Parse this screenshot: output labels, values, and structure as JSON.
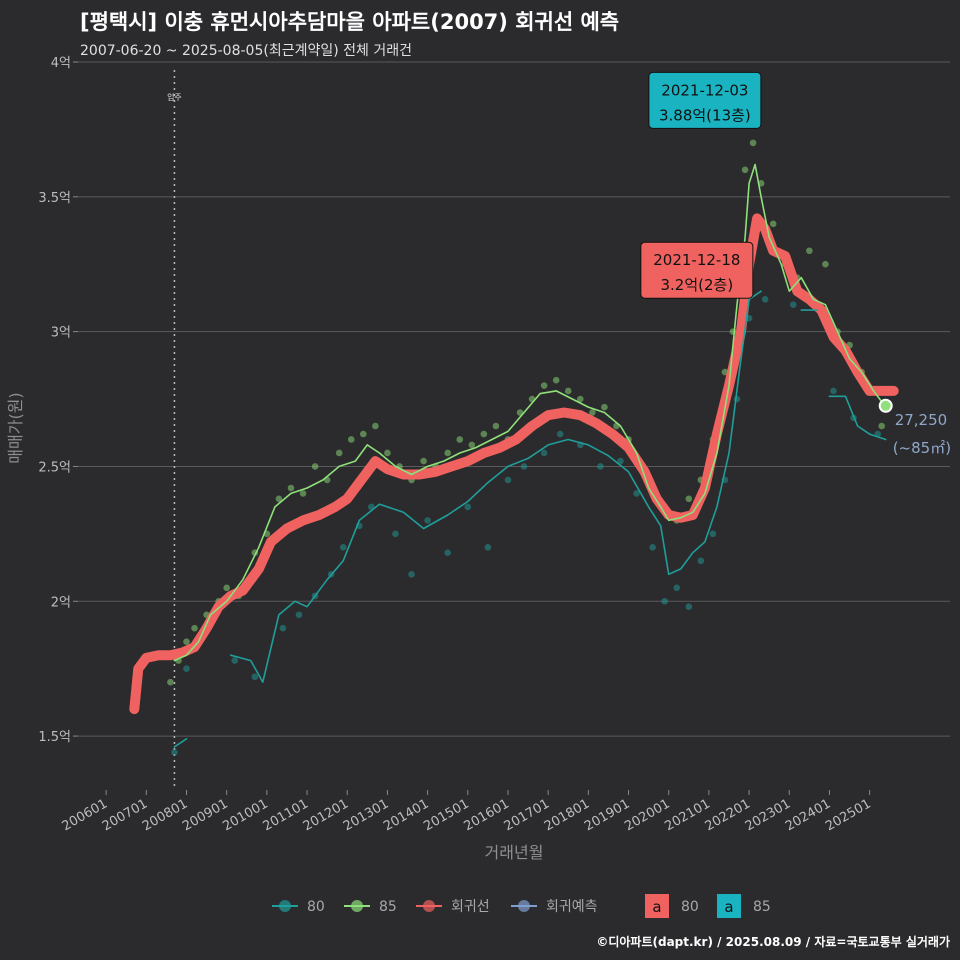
{
  "chart_data": {
    "type": "line",
    "title": "[평택시] 이충 휴먼시아추담마을 아파트(2007) 회귀선 예측",
    "subtitle": "2007-06-20 ~ 2025-08-05(최근계약일) 전체 거래건",
    "xlabel": "거래년월",
    "ylabel": "매매가(원)",
    "ylim": [
      1.3,
      4.0
    ],
    "y_ticks": [
      {
        "v": 1.5,
        "label": "1.5억"
      },
      {
        "v": 2.0,
        "label": "2억"
      },
      {
        "v": 2.5,
        "label": "2.5억"
      },
      {
        "v": 3.0,
        "label": "3억"
      },
      {
        "v": 3.5,
        "label": "3.5억"
      },
      {
        "v": 4.0,
        "label": "4억"
      }
    ],
    "x_ticks": [
      {
        "v": 2006.0,
        "label": "200601"
      },
      {
        "v": 2007.0,
        "label": "200701"
      },
      {
        "v": 2008.0,
        "label": "200801"
      },
      {
        "v": 2009.0,
        "label": "200901"
      },
      {
        "v": 2010.0,
        "label": "201001"
      },
      {
        "v": 2011.0,
        "label": "201101"
      },
      {
        "v": 2012.0,
        "label": "201201"
      },
      {
        "v": 2013.0,
        "label": "201301"
      },
      {
        "v": 2014.0,
        "label": "201401"
      },
      {
        "v": 2015.0,
        "label": "201501"
      },
      {
        "v": 2016.0,
        "label": "201601"
      },
      {
        "v": 2017.0,
        "label": "201701"
      },
      {
        "v": 2018.0,
        "label": "201801"
      },
      {
        "v": 2019.0,
        "label": "201901"
      },
      {
        "v": 2020.0,
        "label": "202001"
      },
      {
        "v": 2021.0,
        "label": "202101"
      },
      {
        "v": 2022.0,
        "label": "202201"
      },
      {
        "v": 2023.0,
        "label": "202301"
      },
      {
        "v": 2024.0,
        "label": "202401"
      },
      {
        "v": 2025.0,
        "label": "202501"
      }
    ],
    "xlim": [
      2005.3,
      2027.0
    ],
    "move_in": {
      "x": 2007.7,
      "label": "입주"
    },
    "grid": true,
    "legend_placement": "bottom",
    "series": [
      {
        "name": "80",
        "color": "#1f9e9a",
        "x": [
          2007.7,
          2008.0,
          null,
          2009.1,
          2009.6,
          2009.9,
          2010.3,
          2010.7,
          2011.0,
          2011.5,
          2011.9,
          2012.3,
          2012.8,
          2013.4,
          2013.9,
          2014.5,
          2015.0,
          2015.5,
          2016.0,
          2016.5,
          2017.0,
          2017.5,
          2018.0,
          2018.5,
          2019.0,
          2019.5,
          2019.8,
          2020.0,
          2020.3,
          2020.6,
          2020.9,
          2021.2,
          2021.5,
          2021.8,
          2022.0,
          2022.3,
          null,
          2023.3,
          2023.7,
          null,
          2024.0,
          2024.4,
          2024.7,
          2025.0,
          2025.4
        ],
        "y": [
          1.46,
          1.49,
          null,
          1.8,
          1.78,
          1.7,
          1.95,
          2.0,
          1.98,
          2.08,
          2.15,
          2.3,
          2.36,
          2.33,
          2.27,
          2.32,
          2.37,
          2.44,
          2.5,
          2.53,
          2.58,
          2.6,
          2.58,
          2.54,
          2.48,
          2.35,
          2.28,
          2.1,
          2.12,
          2.18,
          2.22,
          2.35,
          2.55,
          2.9,
          3.12,
          3.15,
          null,
          3.08,
          3.08,
          null,
          2.76,
          2.76,
          2.65,
          2.62,
          2.6
        ]
      },
      {
        "name": "85",
        "color": "#8ee07a",
        "x": [
          2007.7,
          2008.0,
          2008.3,
          2008.6,
          2009.0,
          2009.4,
          2009.8,
          2010.2,
          2010.6,
          2011.0,
          2011.4,
          2011.8,
          2012.2,
          2012.5,
          2012.8,
          2013.2,
          2013.6,
          2014.0,
          2014.4,
          2014.8,
          2015.2,
          2015.6,
          2016.0,
          2016.4,
          2016.8,
          2017.2,
          2017.6,
          2018.0,
          2018.4,
          2018.8,
          2019.2,
          2019.5,
          2019.8,
          2020.0,
          2020.3,
          2020.6,
          2020.9,
          2021.2,
          2021.5,
          2021.7,
          2021.9,
          2022.0,
          2022.15,
          2022.3,
          2022.5,
          2022.8,
          2023.0,
          2023.3,
          2023.6,
          2023.9,
          2024.2,
          2024.5,
          2024.8,
          2025.1,
          2025.4
        ],
        "y": [
          1.78,
          1.8,
          1.85,
          1.95,
          2.0,
          2.08,
          2.2,
          2.35,
          2.4,
          2.42,
          2.45,
          2.5,
          2.52,
          2.58,
          2.55,
          2.5,
          2.47,
          2.5,
          2.52,
          2.55,
          2.57,
          2.6,
          2.63,
          2.7,
          2.77,
          2.78,
          2.75,
          2.72,
          2.7,
          2.65,
          2.55,
          2.42,
          2.35,
          2.3,
          2.31,
          2.33,
          2.4,
          2.55,
          2.8,
          3.1,
          3.35,
          3.55,
          3.62,
          3.5,
          3.35,
          3.25,
          3.15,
          3.2,
          3.12,
          3.1,
          3.0,
          2.9,
          2.85,
          2.78,
          2.72
        ]
      },
      {
        "name": "회귀선",
        "color": "#f0625f",
        "x": [
          2006.7,
          2006.8,
          2007.0,
          2007.3,
          2007.6,
          2007.9,
          2008.2,
          2008.5,
          2008.8,
          2009.1,
          2009.4,
          2009.8,
          2010.1,
          2010.5,
          2010.9,
          2011.3,
          2011.7,
          2012.0,
          2012.4,
          2012.7,
          2013.0,
          2013.4,
          2013.8,
          2014.2,
          2014.6,
          2015.0,
          2015.4,
          2015.8,
          2016.2,
          2016.6,
          2017.0,
          2017.4,
          2017.8,
          2018.2,
          2018.6,
          2019.0,
          2019.4,
          2019.7,
          2020.0,
          2020.3,
          2020.6,
          2020.9,
          2021.2,
          2021.5,
          2021.8,
          2022.0,
          2022.2,
          2022.4,
          2022.6,
          2022.9,
          2023.2,
          2023.5,
          2023.8,
          2024.1,
          2024.4,
          2024.7,
          2025.0,
          2025.3,
          2025.6
        ],
        "y": [
          1.6,
          1.75,
          1.79,
          1.8,
          1.8,
          1.81,
          1.83,
          1.9,
          1.98,
          2.02,
          2.04,
          2.12,
          2.22,
          2.27,
          2.3,
          2.32,
          2.35,
          2.38,
          2.46,
          2.52,
          2.49,
          2.47,
          2.47,
          2.48,
          2.5,
          2.52,
          2.55,
          2.57,
          2.6,
          2.65,
          2.69,
          2.7,
          2.69,
          2.66,
          2.62,
          2.57,
          2.48,
          2.38,
          2.32,
          2.31,
          2.32,
          2.42,
          2.62,
          2.8,
          3.0,
          3.25,
          3.42,
          3.38,
          3.3,
          3.28,
          3.15,
          3.12,
          3.08,
          2.98,
          2.93,
          2.85,
          2.78,
          2.78,
          2.78
        ]
      },
      {
        "name": "회귀예측",
        "color": "#7f9fce",
        "x": [],
        "y": []
      }
    ],
    "scatter_80": [
      [
        2007.7,
        1.44
      ],
      [
        2008.0,
        1.75
      ],
      [
        2009.2,
        1.78
      ],
      [
        2009.7,
        1.72
      ],
      [
        2010.4,
        1.9
      ],
      [
        2010.8,
        1.95
      ],
      [
        2011.2,
        2.02
      ],
      [
        2011.6,
        2.1
      ],
      [
        2011.9,
        2.2
      ],
      [
        2012.3,
        2.28
      ],
      [
        2012.6,
        2.35
      ],
      [
        2013.2,
        2.25
      ],
      [
        2013.6,
        2.1
      ],
      [
        2014.0,
        2.3
      ],
      [
        2014.5,
        2.18
      ],
      [
        2015.0,
        2.35
      ],
      [
        2015.5,
        2.2
      ],
      [
        2016.0,
        2.45
      ],
      [
        2016.4,
        2.5
      ],
      [
        2016.9,
        2.55
      ],
      [
        2017.3,
        2.62
      ],
      [
        2017.8,
        2.58
      ],
      [
        2018.3,
        2.5
      ],
      [
        2018.8,
        2.52
      ],
      [
        2019.2,
        2.4
      ],
      [
        2019.6,
        2.2
      ],
      [
        2019.9,
        2.0
      ],
      [
        2020.2,
        2.05
      ],
      [
        2020.5,
        1.98
      ],
      [
        2020.8,
        2.15
      ],
      [
        2021.1,
        2.25
      ],
      [
        2021.4,
        2.45
      ],
      [
        2021.7,
        2.75
      ],
      [
        2022.0,
        3.05
      ],
      [
        2022.4,
        3.12
      ],
      [
        2023.1,
        3.1
      ],
      [
        2024.1,
        2.78
      ],
      [
        2024.6,
        2.68
      ],
      [
        2025.2,
        2.62
      ]
    ],
    "scatter_85": [
      [
        2007.6,
        1.7
      ],
      [
        2007.8,
        1.78
      ],
      [
        2008.0,
        1.85
      ],
      [
        2008.2,
        1.9
      ],
      [
        2008.5,
        1.95
      ],
      [
        2008.8,
        2.0
      ],
      [
        2009.0,
        2.05
      ],
      [
        2009.3,
        2.02
      ],
      [
        2009.7,
        2.18
      ],
      [
        2010.0,
        2.25
      ],
      [
        2010.3,
        2.38
      ],
      [
        2010.6,
        2.42
      ],
      [
        2010.9,
        2.4
      ],
      [
        2011.2,
        2.5
      ],
      [
        2011.5,
        2.45
      ],
      [
        2011.8,
        2.55
      ],
      [
        2012.1,
        2.6
      ],
      [
        2012.4,
        2.62
      ],
      [
        2012.7,
        2.65
      ],
      [
        2013.0,
        2.55
      ],
      [
        2013.3,
        2.5
      ],
      [
        2013.6,
        2.45
      ],
      [
        2013.9,
        2.52
      ],
      [
        2014.2,
        2.5
      ],
      [
        2014.5,
        2.55
      ],
      [
        2014.8,
        2.6
      ],
      [
        2015.1,
        2.58
      ],
      [
        2015.4,
        2.62
      ],
      [
        2015.7,
        2.65
      ],
      [
        2016.0,
        2.6
      ],
      [
        2016.3,
        2.7
      ],
      [
        2016.6,
        2.75
      ],
      [
        2016.9,
        2.8
      ],
      [
        2017.2,
        2.82
      ],
      [
        2017.5,
        2.78
      ],
      [
        2017.8,
        2.75
      ],
      [
        2018.1,
        2.7
      ],
      [
        2018.4,
        2.72
      ],
      [
        2018.7,
        2.65
      ],
      [
        2019.0,
        2.6
      ],
      [
        2019.3,
        2.5
      ],
      [
        2019.6,
        2.42
      ],
      [
        2019.9,
        2.35
      ],
      [
        2020.2,
        2.3
      ],
      [
        2020.5,
        2.38
      ],
      [
        2020.8,
        2.45
      ],
      [
        2021.1,
        2.6
      ],
      [
        2021.4,
        2.85
      ],
      [
        2021.6,
        3.0
      ],
      [
        2021.8,
        3.3
      ],
      [
        2021.9,
        3.6
      ],
      [
        2021.92,
        3.88
      ],
      [
        2022.1,
        3.7
      ],
      [
        2022.3,
        3.55
      ],
      [
        2022.6,
        3.4
      ],
      [
        2022.9,
        3.25
      ],
      [
        2023.2,
        3.2
      ],
      [
        2023.5,
        3.3
      ],
      [
        2023.9,
        3.25
      ],
      [
        2024.2,
        3.0
      ],
      [
        2024.5,
        2.95
      ],
      [
        2024.8,
        2.85
      ],
      [
        2025.1,
        2.78
      ],
      [
        2025.3,
        2.65
      ]
    ],
    "annotations": [
      {
        "date": "2021-12-03",
        "price": "3.88억(13층)",
        "x": 2021.92,
        "y": 3.88,
        "color": "#1ab3c2",
        "box_x": 2020.9,
        "box_y": 3.88
      },
      {
        "date": "2021-12-18",
        "price": "3.2억(2층)",
        "x": 2021.96,
        "y": 3.2,
        "color": "#f0625f",
        "box_x": 2020.7,
        "box_y": 3.25
      }
    ],
    "end_label": {
      "value": "27,250",
      "sub": "(~85㎡)",
      "x": 2025.4,
      "y": 2.725
    },
    "legend": {
      "lines": [
        {
          "name": "80",
          "color": "#1f9e9a"
        },
        {
          "name": "85",
          "color": "#8ee07a"
        },
        {
          "name": "회귀선",
          "color": "#f0625f"
        },
        {
          "name": "회귀예측",
          "color": "#7f9fce"
        }
      ],
      "boxes": [
        {
          "glyph": "a",
          "name": "80",
          "color": "#f0625f"
        },
        {
          "glyph": "a",
          "name": "85",
          "color": "#1ab3c2"
        }
      ]
    }
  },
  "credit": "©디아파트(dapt.kr) / 2025.08.09 / 자료=국토교통부 실거래가"
}
